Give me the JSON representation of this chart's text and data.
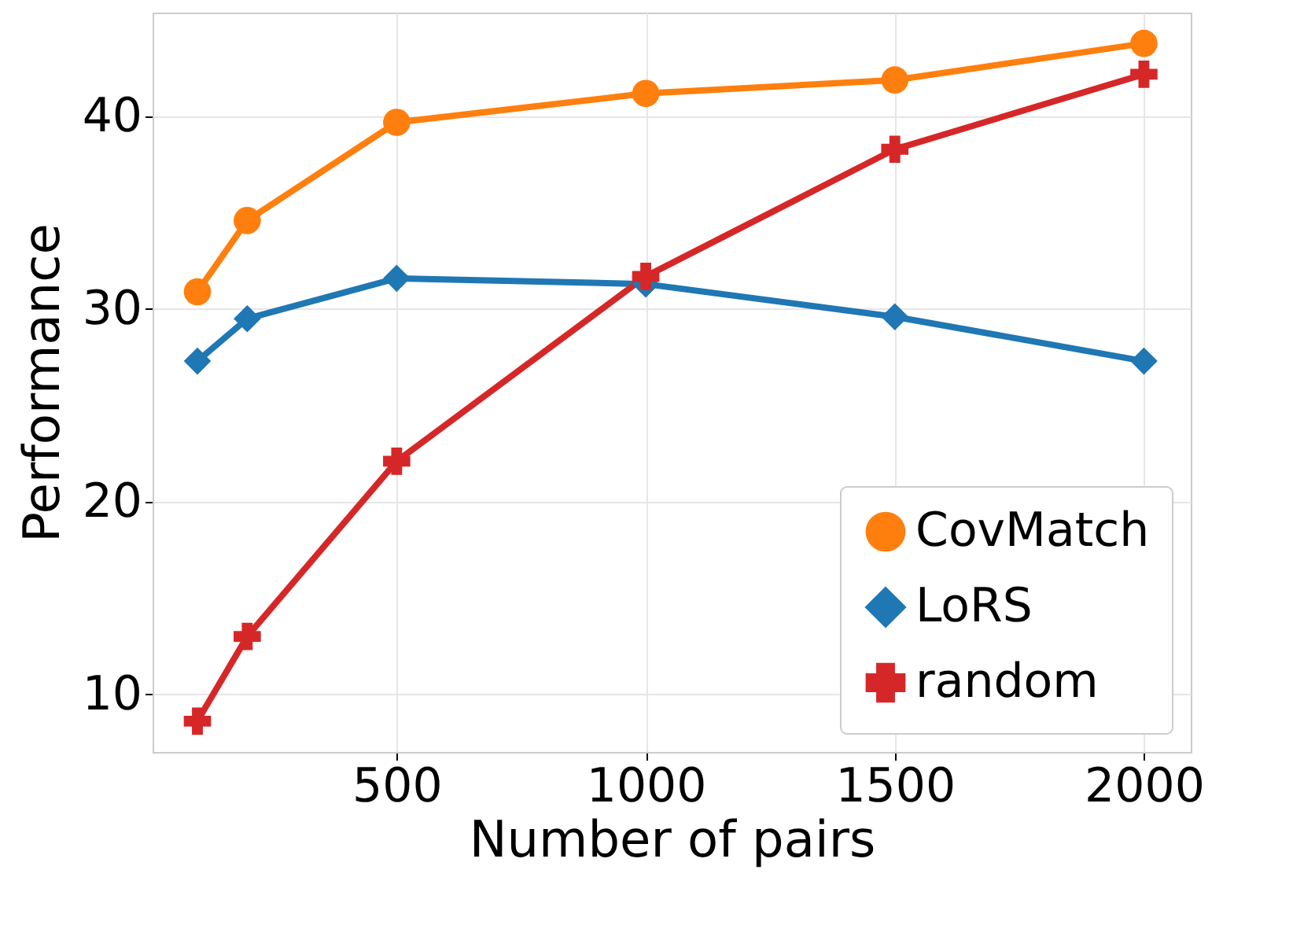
{
  "chart_data": {
    "type": "line",
    "xlabel": "Number of pairs",
    "ylabel": "Performance",
    "x": [
      100,
      200,
      500,
      1000,
      1500,
      2000
    ],
    "series": [
      {
        "name": "CovMatch",
        "color": "#ff7f0e",
        "marker": "circle",
        "values": [
          30.9,
          34.6,
          39.7,
          41.2,
          41.9,
          43.8
        ]
      },
      {
        "name": "LoRS",
        "color": "#1f77b4",
        "marker": "diamond",
        "values": [
          27.3,
          29.5,
          31.6,
          31.3,
          29.6,
          27.3
        ]
      },
      {
        "name": "random",
        "color": "#d62728",
        "marker": "cross",
        "values": [
          8.6,
          13.0,
          22.1,
          31.7,
          38.3,
          42.2
        ]
      }
    ],
    "xlim": [
      10,
      2094
    ],
    "xticks": [
      500,
      1000,
      1500,
      2000
    ],
    "ylim": [
      7,
      45.4
    ],
    "yticks": [
      10,
      20,
      30,
      40
    ],
    "grid": true,
    "legend": "bottom right",
    "line_style": "solid"
  }
}
